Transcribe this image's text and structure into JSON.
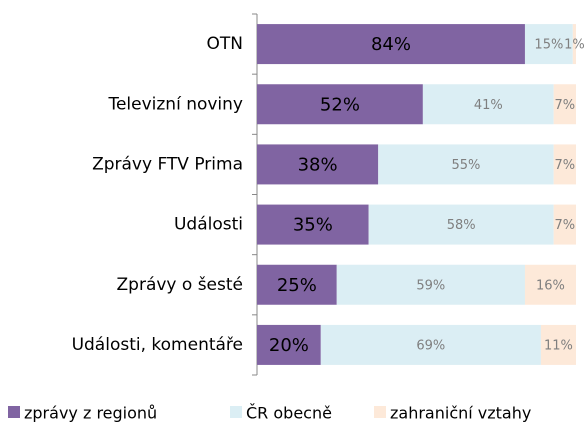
{
  "chart_data": {
    "type": "bar",
    "orientation": "horizontal",
    "stacked": true,
    "categories": [
      "OTN",
      "Televizní noviny",
      "Zprávy FTV Prima",
      "Události",
      "Zprávy o šesté",
      "Události, komentáře"
    ],
    "xlim": [
      0,
      100
    ],
    "legend": "bottom",
    "series": [
      {
        "name": "zprávy z regionů",
        "color": "#8064a2",
        "values": [
          84,
          52,
          38,
          35,
          25,
          20
        ],
        "value_labels": [
          "84%",
          "52%",
          "38%",
          "35%",
          "25%",
          "20%"
        ]
      },
      {
        "name": "ČR obecně",
        "color": "#dbeef4",
        "values": [
          15,
          41,
          55,
          58,
          59,
          69
        ],
        "value_labels": [
          "15%",
          "41%",
          "55%",
          "58%",
          "59%",
          "69%"
        ]
      },
      {
        "name": "zahraniční vztahy",
        "color": "#fde9d9",
        "values": [
          1,
          7,
          7,
          7,
          16,
          11
        ],
        "value_labels": [
          "1%",
          "7%",
          "7%",
          "7%",
          "16%",
          "11%"
        ]
      }
    ]
  }
}
